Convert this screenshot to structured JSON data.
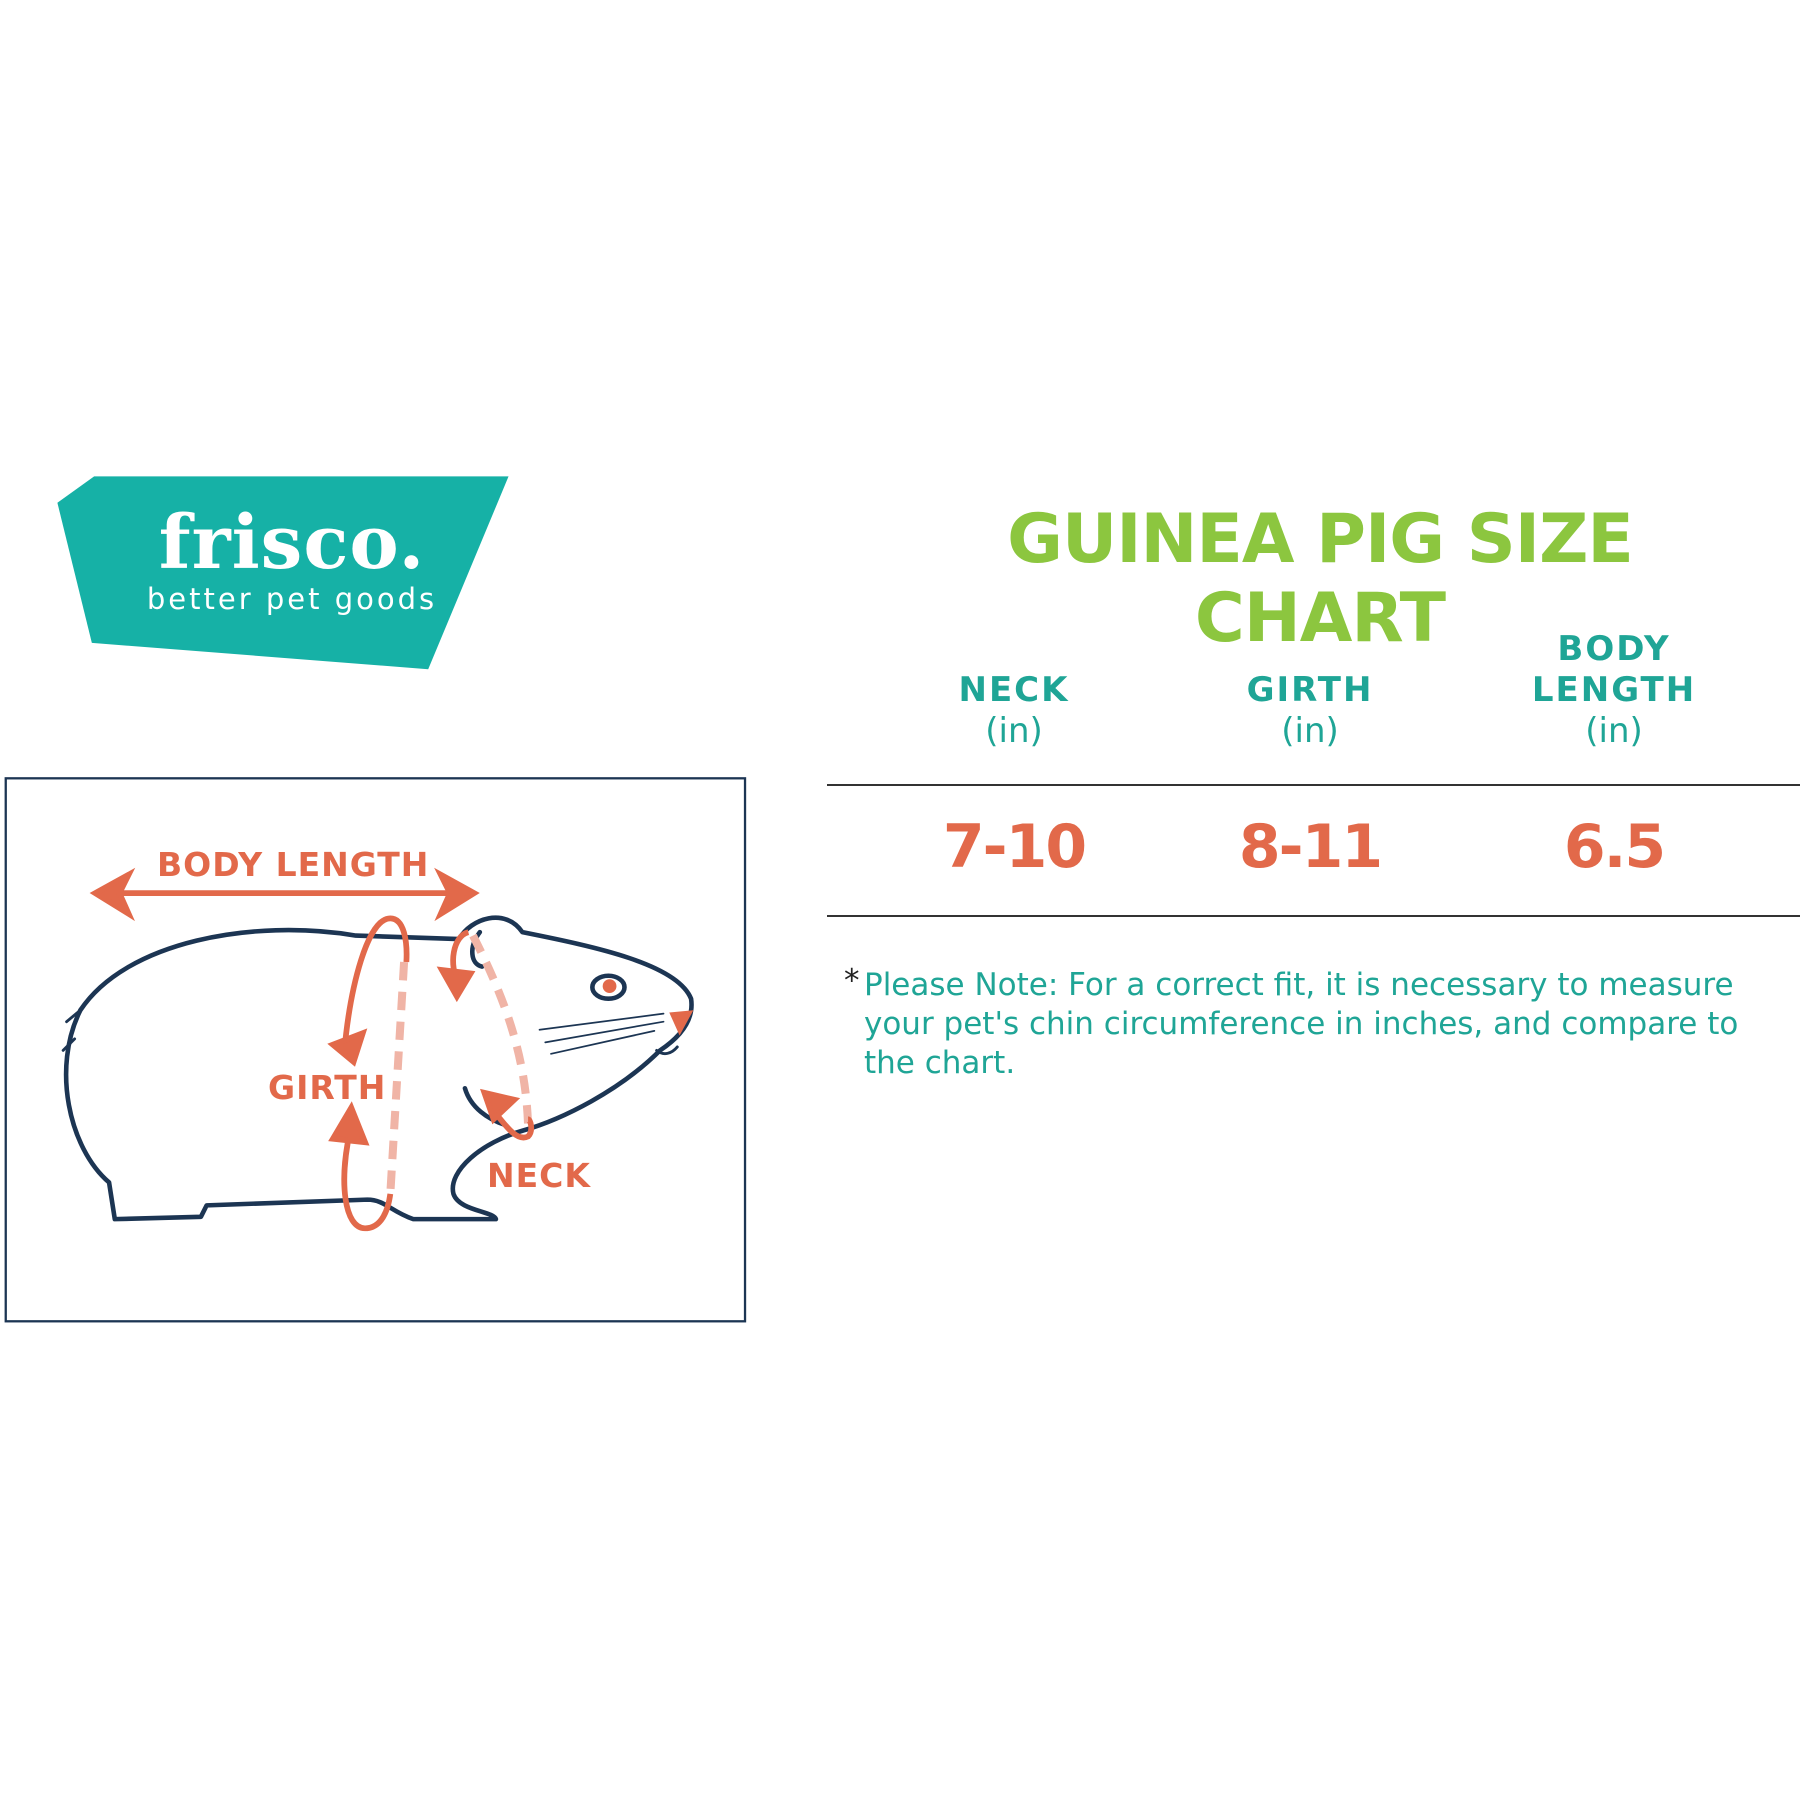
{
  "brand": {
    "name": "frisco.",
    "tagline": "better pet goods",
    "color": "#16b1a6"
  },
  "title": "GUINEA PIG SIZE CHART",
  "diagram": {
    "labels": {
      "body_length": "BODY LENGTH",
      "girth": "GIRTH",
      "neck": "NECK"
    },
    "outline_color": "#1c3553",
    "arrow_color": "#e2694a",
    "dash_color": "#f0b4a6"
  },
  "table": {
    "columns": [
      {
        "name": "NECK",
        "name2": "",
        "unit": "(in)",
        "value": "7-10"
      },
      {
        "name": "GIRTH",
        "name2": "",
        "unit": "(in)",
        "value": "8-11"
      },
      {
        "name": "BODY",
        "name2": "LENGTH",
        "unit": "(in)",
        "value": "6.5"
      }
    ]
  },
  "note": {
    "marker": "*",
    "text": "Please Note: For a correct fit, it is necessary to measure your pet's chin circumference in inches, and compare to the chart."
  },
  "colors": {
    "title": "#8cc63f",
    "header": "#1fa596",
    "value": "#e2694a"
  }
}
